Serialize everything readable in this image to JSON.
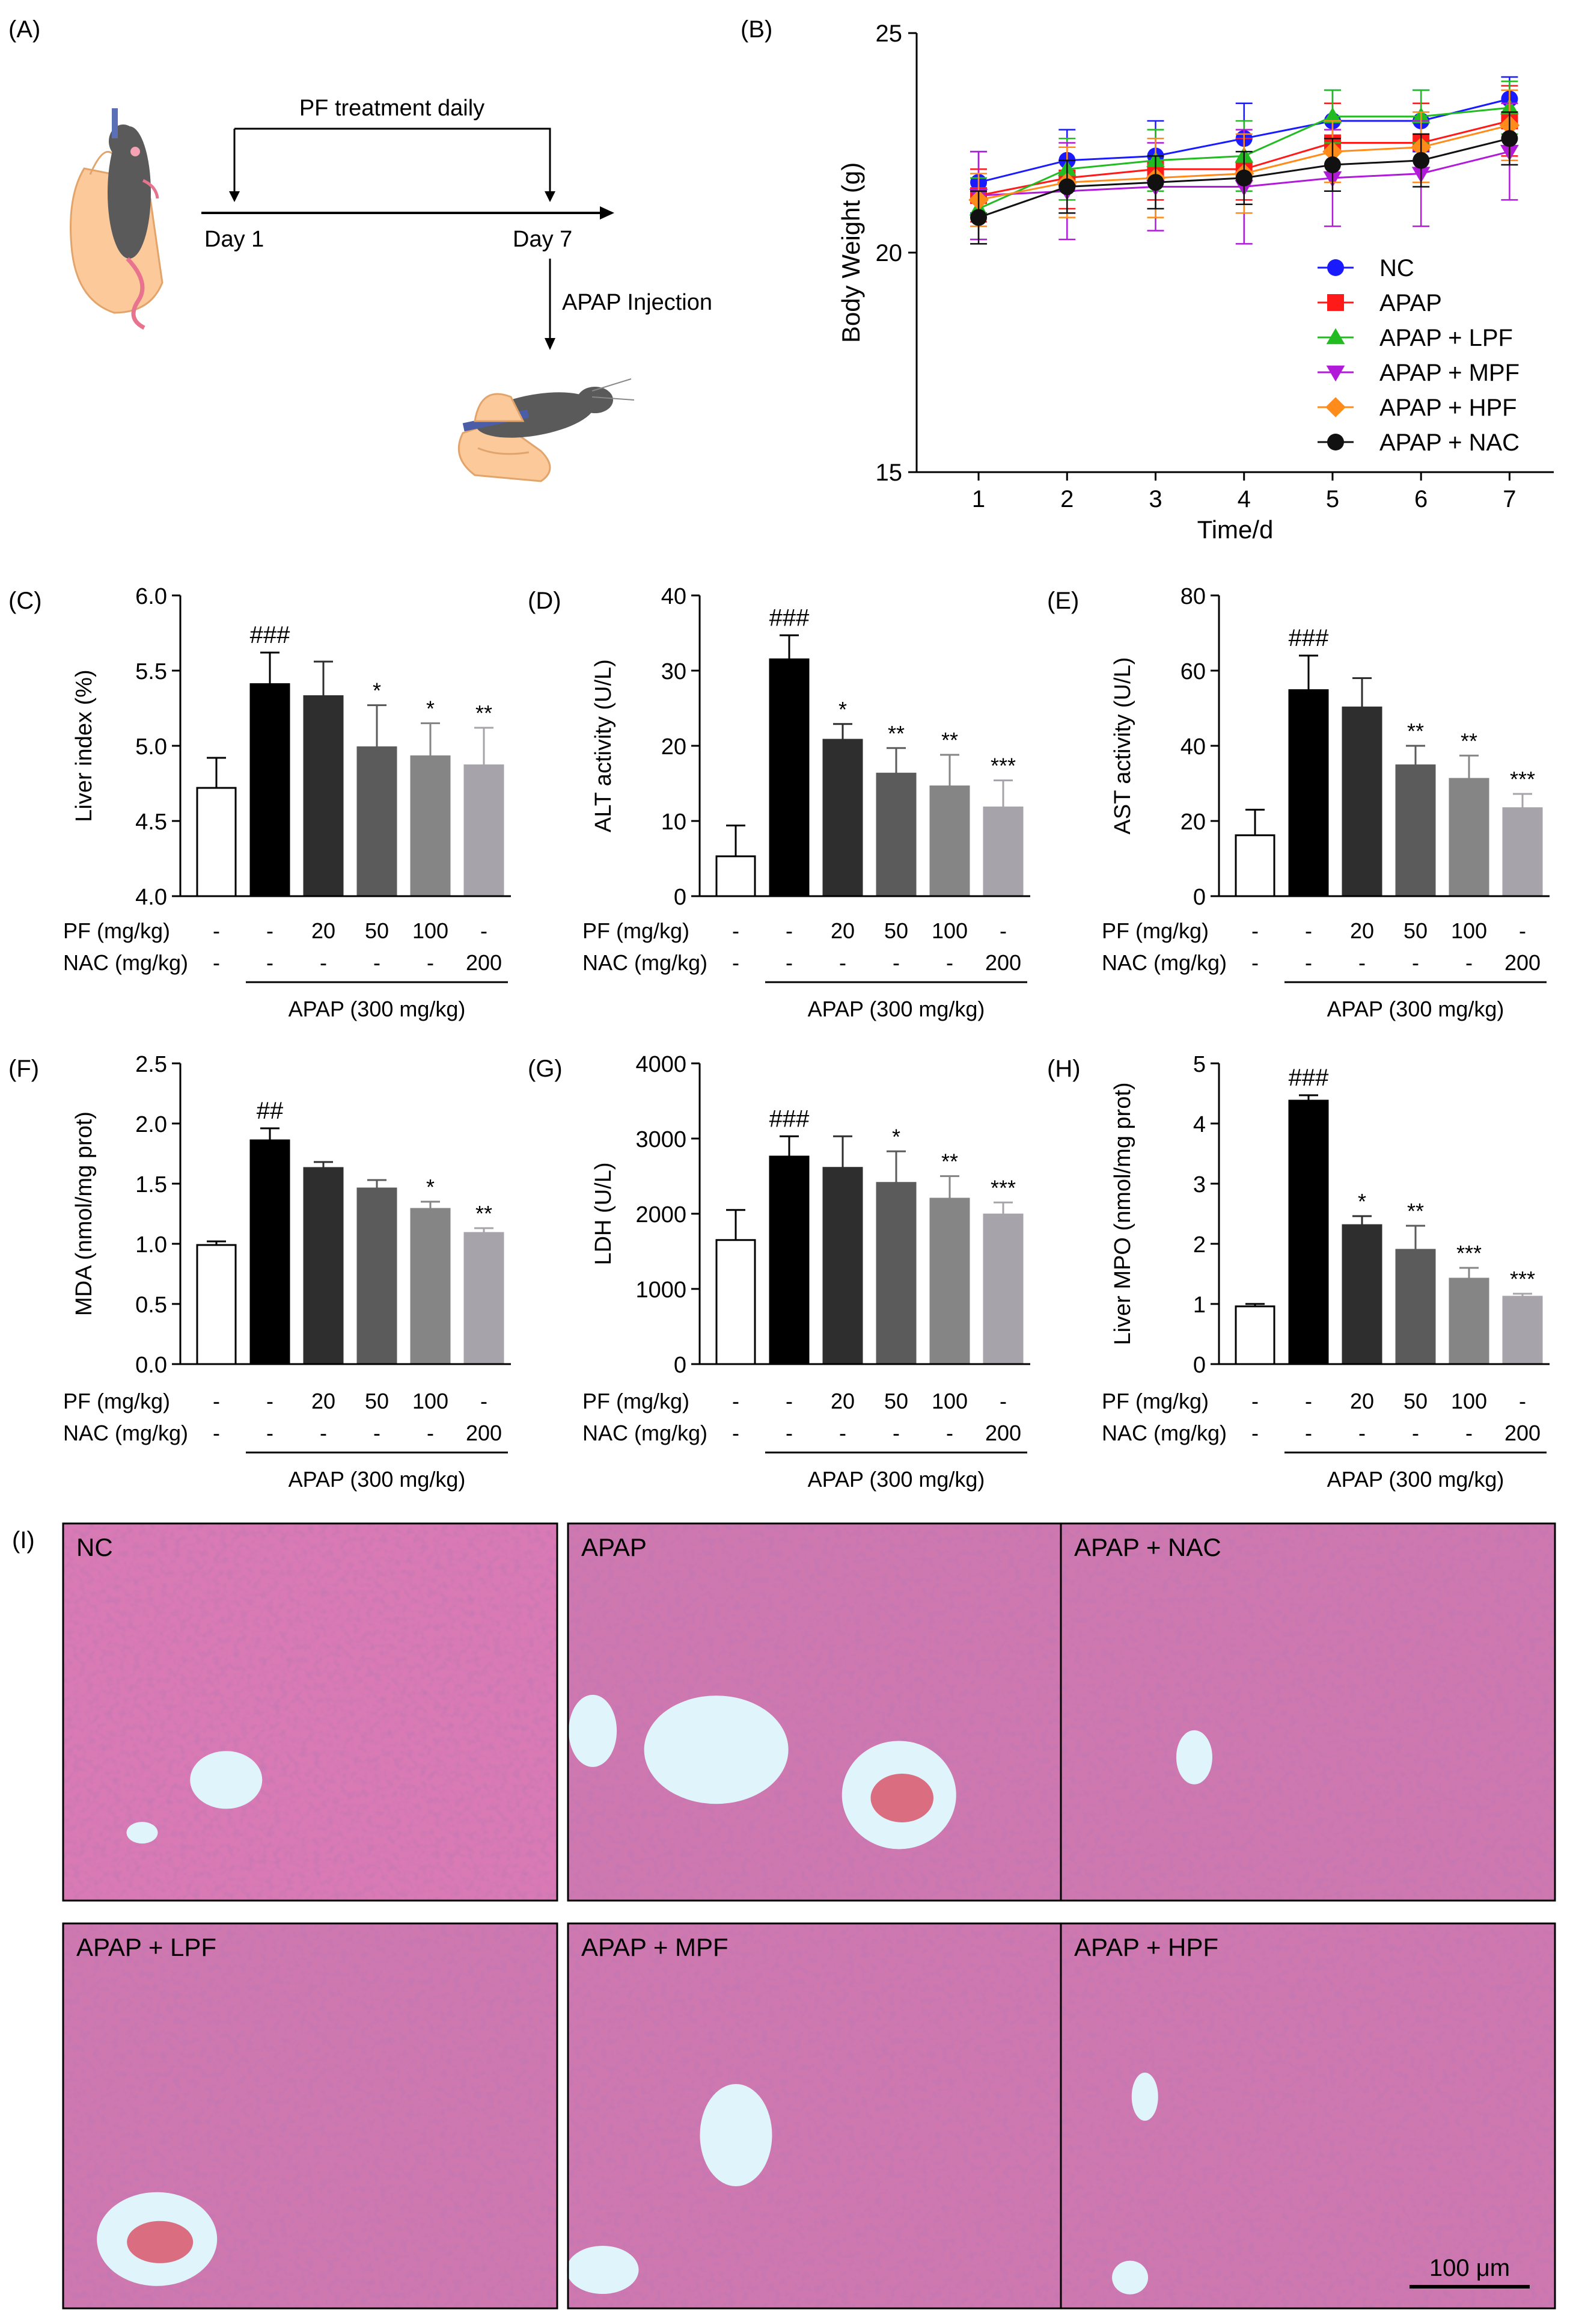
{
  "panel_labels": {
    "A": "(A)",
    "B": "(B)",
    "C": "(C)",
    "D": "(D)",
    "E": "(E)",
    "F": "(F)",
    "G": "(G)",
    "H": "(H)",
    "I": "(I)"
  },
  "schematic": {
    "treatment_label": "PF treatment daily",
    "day1_label": "Day 1",
    "day7_label": "Day 7",
    "injection_label": "APAP Injection"
  },
  "treatment_table": {
    "pf_label": "PF (mg/kg)",
    "nac_label": "NAC (mg/kg)",
    "pf_values": [
      "-",
      "-",
      "20",
      "50",
      "100",
      "-"
    ],
    "nac_values": [
      "-",
      "-",
      "-",
      "-",
      "-",
      "200"
    ],
    "apap_label": "APAP (300 mg/kg)"
  },
  "colors": {
    "NC": "#1a1aff",
    "APAP": "#ff1a1a",
    "LPF": "#22bb22",
    "MPF": "#b01ad8",
    "HPF": "#ff8c1a",
    "NAC": "#111111"
  },
  "bar_colors": [
    "#ffffff",
    "#000000",
    "#2e2e2e",
    "#5b5b5b",
    "#858585",
    "#a7a3aa"
  ],
  "histology": {
    "panels": [
      "NC",
      "APAP",
      "APAP + NAC",
      "APAP + LPF",
      "APAP + MPF",
      "APAP + HPF"
    ],
    "scale_bar_label": "100 μm"
  },
  "chart_data": [
    {
      "id": "B",
      "type": "line",
      "xlabel": "Time/d",
      "ylabel": "Body Weight (g)",
      "x": [
        1,
        2,
        3,
        4,
        5,
        6,
        7
      ],
      "xlim": [
        0.3,
        7.5
      ],
      "ylim": [
        15,
        25
      ],
      "yticks": [
        15,
        20,
        25
      ],
      "legend_position": "bottom-right",
      "series": [
        {
          "name": "NC",
          "marker": "circle",
          "values": [
            21.6,
            22.1,
            22.2,
            22.6,
            23.0,
            23.0,
            23.5
          ],
          "errors": [
            0.7,
            0.7,
            0.8,
            0.8,
            0.7,
            0.7,
            0.5
          ]
        },
        {
          "name": "APAP",
          "marker": "square",
          "values": [
            21.3,
            21.7,
            21.9,
            21.9,
            22.5,
            22.5,
            23.0
          ],
          "errors": [
            0.6,
            0.7,
            0.7,
            0.7,
            0.9,
            0.9,
            0.8
          ]
        },
        {
          "name": "APAP + LPF",
          "marker": "triangle-up",
          "values": [
            21.0,
            21.9,
            22.1,
            22.2,
            23.1,
            23.1,
            23.3
          ],
          "errors": [
            0.7,
            0.7,
            0.7,
            0.8,
            0.6,
            0.6,
            0.6
          ]
        },
        {
          "name": "APAP + MPF",
          "marker": "triangle-down",
          "values": [
            21.3,
            21.4,
            21.5,
            21.5,
            21.7,
            21.8,
            22.3
          ],
          "errors": [
            1.0,
            1.1,
            1.0,
            1.3,
            1.1,
            1.2,
            1.1
          ]
        },
        {
          "name": "APAP + HPF",
          "marker": "diamond",
          "values": [
            21.2,
            21.6,
            21.7,
            21.8,
            22.3,
            22.4,
            22.9
          ],
          "errors": [
            0.6,
            0.8,
            0.9,
            0.9,
            0.7,
            0.8,
            0.8
          ]
        },
        {
          "name": "APAP + NAC",
          "marker": "circle",
          "values": [
            20.8,
            21.5,
            21.6,
            21.7,
            22.0,
            22.1,
            22.6
          ],
          "errors": [
            0.6,
            0.6,
            0.6,
            0.6,
            0.6,
            0.6,
            0.6
          ]
        }
      ]
    },
    {
      "id": "C",
      "type": "bar",
      "ylabel": "Liver index (%)",
      "ylim": [
        4.0,
        6.0
      ],
      "yticks": [
        4.0,
        4.5,
        5.0,
        5.5,
        6.0
      ],
      "tick_decimals": 1,
      "values": [
        4.72,
        5.41,
        5.33,
        4.99,
        4.93,
        4.87
      ],
      "errors": [
        0.2,
        0.21,
        0.23,
        0.28,
        0.22,
        0.25
      ],
      "annotations": [
        "",
        "###",
        "",
        "*",
        "*",
        "**"
      ]
    },
    {
      "id": "D",
      "type": "bar",
      "ylabel": "ALT activity (U/L)",
      "ylim": [
        0,
        40
      ],
      "yticks": [
        0,
        10,
        20,
        30,
        40
      ],
      "tick_decimals": 0,
      "values": [
        5.3,
        31.5,
        20.8,
        16.3,
        14.6,
        11.8
      ],
      "errors": [
        4.1,
        3.2,
        2.1,
        3.4,
        4.2,
        3.6
      ],
      "annotations": [
        "",
        "###",
        "*",
        "**",
        "**",
        "***"
      ]
    },
    {
      "id": "E",
      "type": "bar",
      "ylabel": "AST activity (U/L)",
      "ylim": [
        0,
        80
      ],
      "yticks": [
        0,
        20,
        40,
        60,
        80
      ],
      "tick_decimals": 0,
      "values": [
        16.2,
        54.8,
        50.2,
        34.8,
        31.2,
        23.4
      ],
      "errors": [
        6.8,
        9.2,
        7.8,
        5.2,
        6.2,
        3.8
      ],
      "annotations": [
        "",
        "###",
        "",
        "**",
        "**",
        "***"
      ]
    },
    {
      "id": "F",
      "type": "bar",
      "ylabel": "MDA (nmol/mg prot)",
      "ylim": [
        0.0,
        2.5
      ],
      "yticks": [
        0.0,
        0.5,
        1.0,
        1.5,
        2.0,
        2.5
      ],
      "tick_decimals": 1,
      "values": [
        0.99,
        1.86,
        1.63,
        1.46,
        1.29,
        1.09
      ],
      "errors": [
        0.03,
        0.1,
        0.05,
        0.07,
        0.06,
        0.04
      ],
      "annotations": [
        "",
        "##",
        "",
        "",
        "*",
        "**"
      ]
    },
    {
      "id": "G",
      "type": "bar",
      "ylabel": "LDH (U/L)",
      "ylim": [
        0,
        4000
      ],
      "yticks": [
        0,
        1000,
        2000,
        3000,
        4000
      ],
      "tick_decimals": 0,
      "values": [
        1650,
        2760,
        2610,
        2410,
        2200,
        1990
      ],
      "errors": [
        400,
        270,
        420,
        420,
        300,
        160
      ],
      "annotations": [
        "",
        "###",
        "",
        "*",
        "**",
        "***"
      ]
    },
    {
      "id": "H",
      "type": "bar",
      "ylabel": "Liver MPO (nmol/mg prot)",
      "ylim": [
        0,
        5
      ],
      "yticks": [
        0,
        1,
        2,
        3,
        4,
        5
      ],
      "tick_decimals": 0,
      "values": [
        0.96,
        4.38,
        2.31,
        1.9,
        1.42,
        1.12
      ],
      "errors": [
        0.04,
        0.09,
        0.15,
        0.4,
        0.18,
        0.05
      ],
      "annotations": [
        "",
        "###",
        "*",
        "**",
        "***",
        "***"
      ]
    }
  ]
}
